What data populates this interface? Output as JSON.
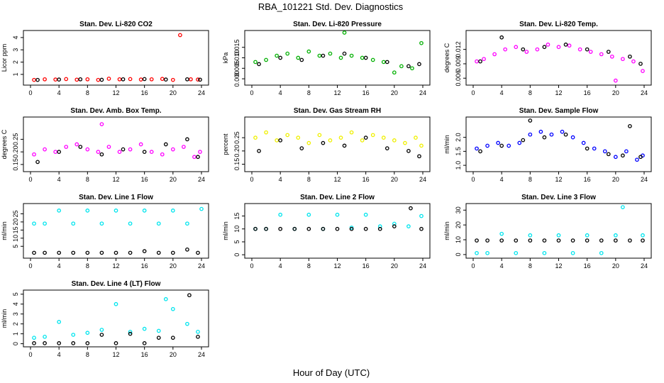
{
  "figure": {
    "title": "RBA_101221  Std. Dev. Diagnostics",
    "xlabel": "Hour of Day (UTC)"
  },
  "chart_data": [
    {
      "type": "scatter",
      "title": "Stan. Dev. Li-820 CO2",
      "ylabel": "Licor ppm",
      "xlim": [
        0,
        24
      ],
      "xticks": [
        0,
        4,
        8,
        12,
        16,
        20,
        24
      ],
      "ylim": [
        0.3,
        4.4
      ],
      "yticks": [
        1,
        2,
        3,
        4
      ],
      "ytick_labels": [
        "1",
        "2",
        "3",
        "4"
      ],
      "series": [
        {
          "name": "primary",
          "color": "#ff0000",
          "x": [
            0.5,
            2,
            3.5,
            5,
            6.5,
            8,
            9.5,
            11,
            12.5,
            14,
            15.5,
            17,
            18.5,
            20,
            21,
            22.5,
            23.5
          ],
          "y": [
            0.55,
            0.6,
            0.58,
            0.62,
            0.57,
            0.6,
            0.55,
            0.65,
            0.6,
            0.62,
            0.58,
            0.6,
            0.63,
            0.55,
            4.2,
            0.6,
            0.58
          ]
        },
        {
          "name": "secondary",
          "color": "#000000",
          "x": [
            1,
            4,
            7,
            10,
            13,
            16,
            19,
            22,
            23.8
          ],
          "y": [
            0.55,
            0.58,
            0.6,
            0.56,
            0.6,
            0.62,
            0.58,
            0.6,
            0.57
          ]
        }
      ]
    },
    {
      "type": "scatter",
      "title": "Stan. Dev. Li-820 Pressure",
      "ylabel": "kPa",
      "xlim": [
        0,
        24
      ],
      "xticks": [
        0,
        4,
        8,
        12,
        16,
        20,
        24
      ],
      "ylim": [
        -0.002,
        0.022
      ],
      "yticks": [
        0,
        0.005,
        0.01,
        0.015
      ],
      "ytick_labels": [
        "0.000",
        "0.005",
        "0.010",
        "0.015"
      ],
      "series": [
        {
          "name": "primary",
          "color": "#00b000",
          "x": [
            0.5,
            2,
            3.5,
            5,
            6.5,
            8,
            9.5,
            11,
            12.5,
            13,
            14,
            15.5,
            17,
            18.5,
            20,
            21,
            22.5,
            23.8
          ],
          "y": [
            0.008,
            0.009,
            0.011,
            0.012,
            0.01,
            0.013,
            0.011,
            0.012,
            0.01,
            0.022,
            0.011,
            0.01,
            0.009,
            0.008,
            0.003,
            0.006,
            0.005,
            0.017
          ]
        },
        {
          "name": "secondary",
          "color": "#000000",
          "x": [
            1,
            4,
            7,
            10,
            13,
            16,
            19,
            22,
            23.5
          ],
          "y": [
            0.007,
            0.01,
            0.009,
            0.011,
            0.012,
            0.01,
            0.008,
            0.006,
            0.007
          ]
        }
      ]
    },
    {
      "type": "scatter",
      "title": "Stan. Dev. Li-820 Temp.",
      "ylabel": "degrees C",
      "xlim": [
        0,
        24
      ],
      "xticks": [
        0,
        4,
        8,
        12,
        16,
        20,
        24
      ],
      "ylim": [
        0.005,
        0.0155
      ],
      "yticks": [
        0.006,
        0.009,
        0.012
      ],
      "ytick_labels": [
        "0.006",
        "0.009",
        "0.012"
      ],
      "series": [
        {
          "name": "primary",
          "color": "#ff00ff",
          "x": [
            0.5,
            1.5,
            3,
            4.5,
            6,
            7.5,
            9,
            10.5,
            12,
            13.5,
            15,
            16.5,
            18,
            19.5,
            20,
            21,
            22.5,
            23.8
          ],
          "y": [
            0.0095,
            0.01,
            0.011,
            0.012,
            0.0125,
            0.0115,
            0.012,
            0.013,
            0.0125,
            0.0128,
            0.012,
            0.0115,
            0.011,
            0.0105,
            0.0055,
            0.01,
            0.0095,
            0.0075
          ]
        },
        {
          "name": "secondary",
          "color": "#000000",
          "x": [
            1,
            4,
            7,
            10,
            13,
            16,
            19,
            22,
            23.5
          ],
          "y": [
            0.0095,
            0.0145,
            0.012,
            0.0125,
            0.013,
            0.012,
            0.0115,
            0.0105,
            0.009
          ]
        }
      ]
    },
    {
      "type": "scatter",
      "title": "Stan. Dev. Amb. Box Temp.",
      "ylabel": "degrees C",
      "xlim": [
        0,
        24
      ],
      "xticks": [
        0,
        4,
        8,
        12,
        16,
        20,
        24
      ],
      "ylim": [
        0.13,
        0.33
      ],
      "yticks": [
        0.15,
        0.2,
        0.25
      ],
      "ytick_labels": [
        "0.15",
        "0.20",
        "0.25"
      ],
      "series": [
        {
          "name": "primary",
          "color": "#ff00ff",
          "x": [
            0.5,
            2,
            3.5,
            5,
            6.5,
            8,
            9.5,
            10,
            11,
            12.5,
            14,
            15.5,
            17,
            18.5,
            20,
            21.5,
            23,
            23.8
          ],
          "y": [
            0.19,
            0.21,
            0.2,
            0.22,
            0.23,
            0.21,
            0.2,
            0.31,
            0.22,
            0.2,
            0.21,
            0.23,
            0.2,
            0.19,
            0.21,
            0.22,
            0.18,
            0.2
          ]
        },
        {
          "name": "secondary",
          "color": "#000000",
          "x": [
            1,
            4,
            7,
            10,
            13,
            16,
            19,
            22,
            23.5
          ],
          "y": [
            0.16,
            0.2,
            0.22,
            0.19,
            0.21,
            0.2,
            0.23,
            0.25,
            0.18
          ]
        }
      ]
    },
    {
      "type": "scatter",
      "title": "Stan. Dev. Gas Stream RH",
      "ylabel": "percent",
      "xlim": [
        0,
        24
      ],
      "xticks": [
        0,
        4,
        8,
        12,
        16,
        20,
        24
      ],
      "ylim": [
        0.13,
        0.32
      ],
      "yticks": [
        0.15,
        0.2,
        0.25
      ],
      "ytick_labels": [
        "0.15",
        "0.20",
        "0.25"
      ],
      "series": [
        {
          "name": "primary",
          "color": "#f0f000",
          "x": [
            0.5,
            2,
            3.5,
            5,
            6.5,
            8,
            9.5,
            11,
            12.5,
            14,
            15.5,
            17,
            18.5,
            20,
            21.5,
            23,
            23.8
          ],
          "y": [
            0.25,
            0.27,
            0.24,
            0.26,
            0.25,
            0.23,
            0.26,
            0.24,
            0.25,
            0.27,
            0.24,
            0.26,
            0.25,
            0.24,
            0.23,
            0.25,
            0.22
          ]
        },
        {
          "name": "secondary",
          "color": "#000000",
          "x": [
            1,
            4,
            7,
            10,
            13,
            16,
            19,
            22,
            23.5
          ],
          "y": [
            0.2,
            0.24,
            0.21,
            0.23,
            0.22,
            0.25,
            0.21,
            0.2,
            0.18
          ]
        }
      ]
    },
    {
      "type": "scatter",
      "title": "Stan. Dev. Sample Flow",
      "ylabel": "ml/min",
      "xlim": [
        0,
        24
      ],
      "xticks": [
        0,
        4,
        8,
        12,
        16,
        20,
        24
      ],
      "ylim": [
        0.85,
        2.65
      ],
      "yticks": [
        1,
        1.5,
        2
      ],
      "ytick_labels": [
        "1.0",
        "1.5",
        "2.0"
      ],
      "series": [
        {
          "name": "primary",
          "color": "#0000ff",
          "x": [
            0.5,
            2,
            3.5,
            5,
            6.5,
            8,
            9.5,
            11,
            12.5,
            14,
            15.5,
            17,
            18.5,
            20,
            21.5,
            23,
            23.8
          ],
          "y": [
            1.6,
            1.7,
            1.8,
            1.7,
            1.8,
            2.1,
            2.2,
            2.1,
            2.2,
            2.0,
            1.8,
            1.6,
            1.5,
            1.3,
            1.5,
            1.2,
            1.35
          ]
        },
        {
          "name": "secondary",
          "color": "#000000",
          "x": [
            1,
            4,
            7,
            8,
            10,
            13,
            16,
            19,
            21,
            22,
            23.5
          ],
          "y": [
            1.5,
            1.7,
            1.9,
            2.6,
            2.0,
            2.1,
            1.6,
            1.4,
            1.35,
            2.4,
            1.3
          ]
        }
      ]
    },
    {
      "type": "scatter",
      "title": "Stan. Dev. Line 1 Flow",
      "ylabel": "ml/min",
      "xlim": [
        0,
        24
      ],
      "xticks": [
        0,
        4,
        8,
        12,
        16,
        20,
        24
      ],
      "ylim": [
        -1,
        30
      ],
      "yticks": [
        5,
        10,
        15,
        20,
        25
      ],
      "ytick_labels": [
        "5",
        "10",
        "15",
        "20",
        "25"
      ],
      "series": [
        {
          "name": "primary",
          "color": "#00e5ee",
          "x": [
            0.5,
            2,
            4,
            6,
            8,
            10,
            12,
            14,
            16,
            18,
            20,
            22,
            24
          ],
          "y": [
            19,
            19,
            27,
            19,
            27,
            19,
            27,
            19,
            27,
            19,
            27,
            19,
            28
          ]
        },
        {
          "name": "secondary",
          "color": "#000000",
          "x": [
            0.5,
            2,
            4,
            6,
            8,
            10,
            12,
            14,
            16,
            18,
            20,
            22,
            23.5
          ],
          "y": [
            1,
            1,
            1,
            1,
            1,
            1,
            1,
            1,
            2,
            1,
            1,
            3,
            1
          ]
        }
      ]
    },
    {
      "type": "scatter",
      "title": "Stan. Dev. Line 2 Flow",
      "ylabel": "ml/min",
      "xlim": [
        0,
        24
      ],
      "xticks": [
        0,
        4,
        8,
        12,
        16,
        20,
        24
      ],
      "ylim": [
        -0.5,
        19
      ],
      "yticks": [
        0,
        5,
        10,
        15
      ],
      "ytick_labels": [
        "0",
        "5",
        "10",
        "15"
      ],
      "series": [
        {
          "name": "primary",
          "color": "#00e5ee",
          "x": [
            0.5,
            2,
            4,
            6,
            8,
            10,
            12,
            14,
            16,
            18,
            20,
            22,
            23.8
          ],
          "y": [
            10,
            10,
            15.5,
            10,
            15.5,
            10,
            15.5,
            10.5,
            15.5,
            11,
            12,
            11,
            15
          ]
        },
        {
          "name": "secondary",
          "color": "#000000",
          "x": [
            0.5,
            2,
            4,
            6,
            8,
            10,
            12,
            14,
            16,
            18,
            20,
            22.3,
            23.8
          ],
          "y": [
            10,
            10,
            10,
            10,
            10,
            10,
            10,
            10,
            10,
            10,
            11,
            18,
            10
          ]
        }
      ]
    },
    {
      "type": "scatter",
      "title": "Stan. Dev. Line 3 Flow",
      "ylabel": "ml/min",
      "xlim": [
        0,
        24
      ],
      "xticks": [
        0,
        4,
        8,
        12,
        16,
        20,
        24
      ],
      "ylim": [
        -1,
        33
      ],
      "yticks": [
        0,
        10,
        20,
        30
      ],
      "ytick_labels": [
        "0",
        "10",
        "20",
        "30"
      ],
      "series": [
        {
          "name": "primary",
          "color": "#00e5ee",
          "x": [
            0.5,
            2,
            4,
            6,
            8,
            10,
            12,
            14,
            16,
            18,
            20,
            21,
            23.8
          ],
          "y": [
            1,
            1,
            14,
            1,
            13,
            1,
            13,
            1,
            13,
            1,
            13,
            32,
            13
          ]
        },
        {
          "name": "secondary",
          "color": "#000000",
          "x": [
            0.5,
            2,
            4,
            6,
            8,
            10,
            12,
            14,
            16,
            18,
            20,
            22,
            23.8
          ],
          "y": [
            9.5,
            9.5,
            9.5,
            9.5,
            9.5,
            9.5,
            9.5,
            9.5,
            9.5,
            9.5,
            9.5,
            9.5,
            9.5
          ]
        }
      ]
    },
    {
      "type": "scatter",
      "title": "Stan. Dev. Line 4 (LT) Flow",
      "ylabel": "ml/min",
      "xlim": [
        0,
        24
      ],
      "xticks": [
        0,
        4,
        8,
        12,
        16,
        20,
        24
      ],
      "ylim": [
        -0.1,
        5.2
      ],
      "yticks": [
        0,
        1,
        2,
        3,
        4,
        5
      ],
      "ytick_labels": [
        "0",
        "1",
        "2",
        "3",
        "4",
        "5"
      ],
      "series": [
        {
          "name": "primary",
          "color": "#00e5ee",
          "x": [
            0.5,
            2,
            4,
            6,
            8,
            10,
            12,
            14,
            16,
            18,
            19,
            20,
            22,
            23.5
          ],
          "y": [
            0.6,
            0.7,
            2.2,
            0.9,
            1.1,
            1.4,
            4,
            1.2,
            1.5,
            1.3,
            4.5,
            3.5,
            2,
            1.2
          ]
        },
        {
          "name": "secondary",
          "color": "#000000",
          "x": [
            0.5,
            2,
            4,
            6,
            8,
            10,
            12,
            14,
            16,
            18,
            20,
            22.3,
            23.5
          ],
          "y": [
            0.05,
            0.05,
            0.05,
            0.05,
            0.05,
            0.9,
            0.05,
            1,
            0.05,
            0.6,
            0.6,
            4.9,
            0.7
          ]
        }
      ]
    }
  ]
}
